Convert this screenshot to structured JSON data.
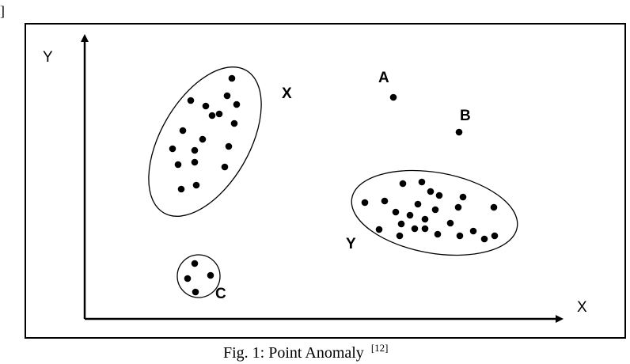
{
  "figure": {
    "corner_mark": "]",
    "caption": {
      "text": "Fig. 1: Point Anomaly",
      "superscript": "[12]"
    }
  },
  "axes": {
    "y_label": "Y",
    "x_label": "X"
  },
  "regions": {
    "cluster_x": {
      "label": "X",
      "points": 18
    },
    "cluster_y": {
      "label": "Y",
      "points": 25
    },
    "anomaly_a": {
      "label": "A"
    },
    "anomaly_b": {
      "label": "B"
    },
    "anomaly_c": {
      "label": "C",
      "points": 4
    }
  }
}
